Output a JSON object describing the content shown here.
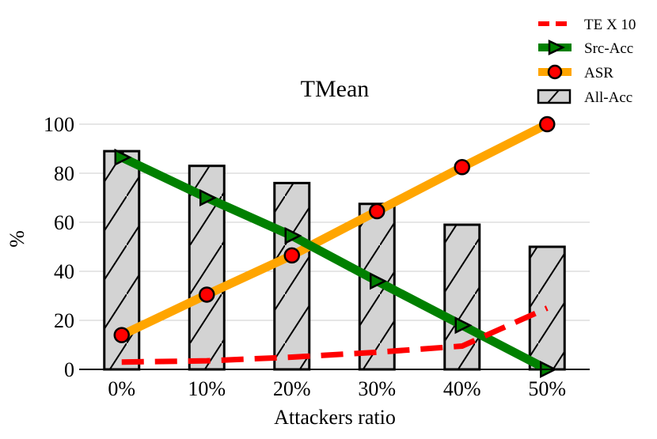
{
  "chart_data": {
    "type": "bar",
    "title": "TMean",
    "xlabel": "Attackers ratio",
    "ylabel": "%",
    "ylim": [
      0,
      100
    ],
    "yticks": [
      "0",
      "20",
      "40",
      "60",
      "80",
      "100"
    ],
    "categories": [
      "0%",
      "10%",
      "20%",
      "30%",
      "40%",
      "50%"
    ],
    "grid": "horizontal",
    "legend_position": "top-right",
    "series": [
      {
        "name": "All-Acc",
        "kind": "bar",
        "color": "#d3d3d3",
        "values": [
          89,
          83,
          76,
          67.5,
          59,
          50
        ]
      },
      {
        "name": "ASR",
        "kind": "line",
        "color": "#ffa500",
        "marker": "circle",
        "values": [
          14,
          30.5,
          46.5,
          64.5,
          82.5,
          100
        ]
      },
      {
        "name": "Src-Acc",
        "kind": "line",
        "color": "#008000",
        "marker": "triangle-right",
        "values": [
          86.5,
          70,
          54.5,
          36,
          18,
          0
        ]
      },
      {
        "name": "TE X 10",
        "kind": "line",
        "color": "#ff0000",
        "style": "dashed",
        "values": [
          3,
          3.5,
          5,
          7,
          9.5,
          25
        ]
      }
    ]
  }
}
